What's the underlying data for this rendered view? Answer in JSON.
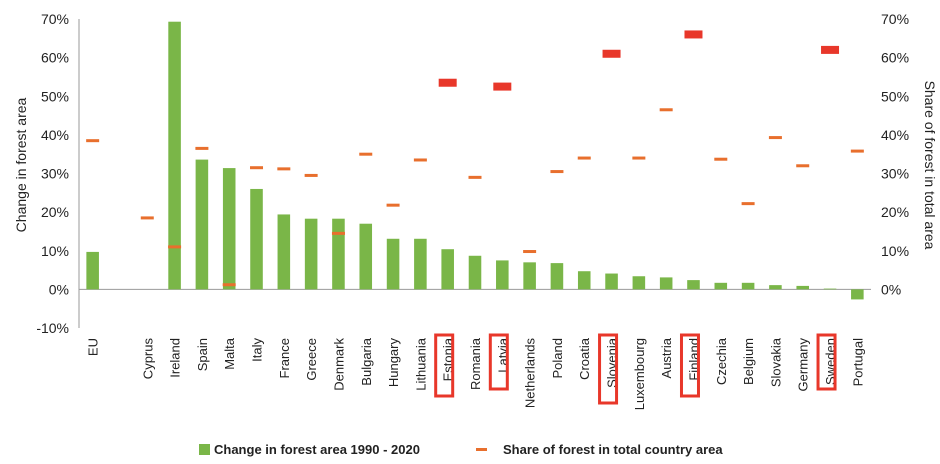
{
  "chart_data": {
    "type": "bar",
    "title": "",
    "categories": [
      "EU",
      "Cyprus",
      "Ireland",
      "Spain",
      "Malta",
      "Italy",
      "France",
      "Greece",
      "Denmark",
      "Bulgaria",
      "Hungary",
      "Lithuania",
      "Estonia",
      "Romania",
      "Latvia",
      "Netherlands",
      "Poland",
      "Croatia",
      "Slovenia",
      "Luxembourg",
      "Austria",
      "Finland",
      "Czechia",
      "Belgium",
      "Slovakia",
      "Germany",
      "Sweden",
      "Portugal"
    ],
    "category_gap_after_index": 0,
    "highlighted_categories": [
      "Estonia",
      "Latvia",
      "Slovenia",
      "Finland",
      "Sweden"
    ],
    "series": [
      {
        "name": "Change in forest area 1990 - 2020",
        "kind": "bar",
        "axis": "left",
        "color": "#7ab648",
        "values": [
          9.7,
          0.0,
          69.3,
          33.6,
          31.4,
          26.0,
          19.4,
          18.3,
          18.3,
          17.0,
          13.1,
          13.1,
          10.4,
          8.7,
          7.5,
          7.0,
          6.8,
          4.7,
          4.1,
          3.4,
          3.1,
          2.4,
          1.7,
          1.7,
          1.1,
          0.9,
          0.2,
          -2.6
        ]
      },
      {
        "name": "Share of forest in total country area",
        "kind": "marker",
        "axis": "right",
        "color": "#e86f2d",
        "highlight_color": "#e8372a",
        "values": [
          38.5,
          18.5,
          11.0,
          36.5,
          1.2,
          31.5,
          31.2,
          29.5,
          14.5,
          35.0,
          21.8,
          33.5,
          53.5,
          29.0,
          52.5,
          9.8,
          30.5,
          34.0,
          61.0,
          34.0,
          46.5,
          66.0,
          33.7,
          22.2,
          39.3,
          32.0,
          62.0,
          35.8
        ]
      }
    ],
    "ylabel": "Change in forest area",
    "y2label": "Share of forest in total area",
    "ylim": [
      -10,
      70
    ],
    "y2lim": [
      -10,
      70
    ],
    "yticks": [
      "-10%",
      "0%",
      "10%",
      "20%",
      "30%",
      "40%",
      "50%",
      "60%",
      "70%"
    ],
    "y2ticks": [
      "0%",
      "10%",
      "20%",
      "30%",
      "40%",
      "50%",
      "60%",
      "70%"
    ],
    "legend_position": "bottom",
    "grid": false
  }
}
